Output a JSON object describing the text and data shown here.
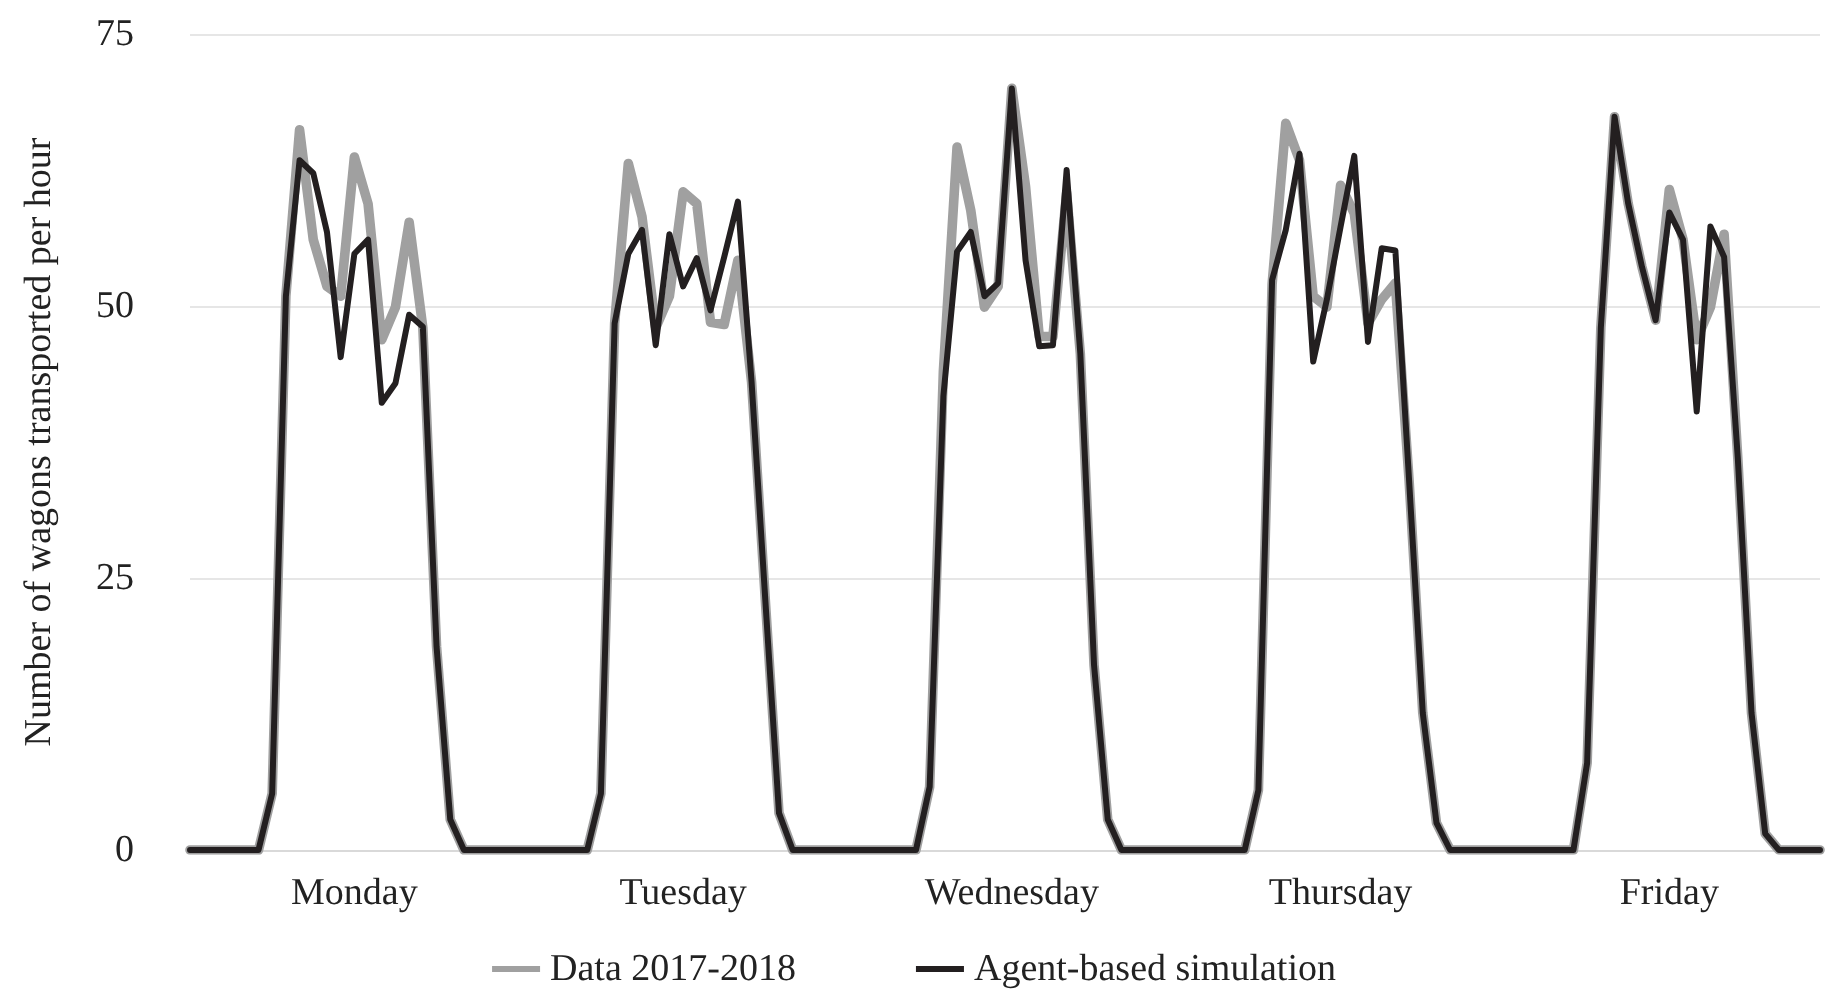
{
  "chart_data": {
    "type": "line",
    "ylabel": "Number of wagons transported per hour",
    "categories": [
      null,
      null,
      null,
      null,
      null,
      null,
      null,
      null,
      null,
      null,
      null,
      null,
      "Monday",
      null,
      null,
      null,
      null,
      null,
      null,
      null,
      null,
      null,
      null,
      null,
      null,
      null,
      null,
      null,
      null,
      null,
      null,
      null,
      null,
      null,
      null,
      null,
      "Tuesday",
      null,
      null,
      null,
      null,
      null,
      null,
      null,
      null,
      null,
      null,
      null,
      null,
      null,
      null,
      null,
      null,
      null,
      null,
      null,
      null,
      null,
      null,
      null,
      "Wednesday",
      null,
      null,
      null,
      null,
      null,
      null,
      null,
      null,
      null,
      null,
      null,
      null,
      null,
      null,
      null,
      null,
      null,
      null,
      null,
      null,
      null,
      null,
      null,
      "Thursday",
      null,
      null,
      null,
      null,
      null,
      null,
      null,
      null,
      null,
      null,
      null,
      null,
      null,
      null,
      null,
      null,
      null,
      null,
      null,
      null,
      null,
      null,
      null,
      "Friday",
      null,
      null,
      null,
      null,
      null,
      null,
      null,
      null,
      null,
      null,
      null
    ],
    "series": [
      {
        "name": "Data 2017-2018",
        "color": "#a0a0a0",
        "values": [
          0,
          0,
          0,
          0,
          0,
          0,
          5.2,
          50.9,
          66.2,
          56.1,
          51.8,
          50.9,
          63.7,
          59.4,
          46.9,
          49.9,
          57.7,
          48,
          18.7,
          2.8,
          0,
          0,
          0,
          0,
          0,
          0,
          0,
          0,
          0,
          0,
          5.2,
          48.4,
          63.1,
          58.2,
          48,
          50.9,
          60.5,
          59.4,
          48.5,
          48.3,
          54.2,
          43,
          23,
          3.4,
          0,
          0,
          0,
          0,
          0,
          0,
          0,
          0,
          0,
          0,
          5.8,
          44,
          64.6,
          58.8,
          49.9,
          51.8,
          70,
          61,
          47.2,
          47.2,
          60.4,
          45.6,
          17,
          2.8,
          0,
          0,
          0,
          0,
          0,
          0,
          0,
          0,
          0,
          0,
          5.5,
          52,
          66.8,
          63.4,
          50.9,
          49.9,
          61.1,
          58.5,
          48.4,
          50.6,
          52.1,
          34,
          12.6,
          2.5,
          0,
          0,
          0,
          0,
          0,
          0,
          0,
          0,
          0,
          0,
          8,
          48,
          67.4,
          59.4,
          53.6,
          48.7,
          60.7,
          56.1,
          46.9,
          49.9,
          56.6,
          36,
          12.6,
          1.5,
          0,
          0,
          0,
          0
        ]
      },
      {
        "name": "Agent-based simulation",
        "color": "#231f20",
        "values": [
          0,
          0,
          0,
          0,
          0,
          0,
          5.2,
          50.9,
          63.4,
          62.2,
          56.8,
          45.3,
          54.8,
          56.1,
          41.1,
          42.9,
          49.2,
          48.1,
          18.7,
          2.8,
          0,
          0,
          0,
          0,
          0,
          0,
          0,
          0,
          0,
          0,
          5.2,
          48.4,
          54.8,
          57,
          46.4,
          56.6,
          51.8,
          54.4,
          49.6,
          54.5,
          59.6,
          43,
          23,
          3.4,
          0,
          0,
          0,
          0,
          0,
          0,
          0,
          0,
          0,
          0,
          5.8,
          41.7,
          55,
          56.8,
          50.9,
          52.1,
          70,
          54.2,
          46.3,
          46.4,
          62.5,
          45.6,
          17,
          2.8,
          0,
          0,
          0,
          0,
          0,
          0,
          0,
          0,
          0,
          0,
          5.5,
          52.4,
          57,
          64,
          44.9,
          50.6,
          57.3,
          63.8,
          46.7,
          55.3,
          55.1,
          34,
          12.6,
          2.5,
          0,
          0,
          0,
          0,
          0,
          0,
          0,
          0,
          0,
          0,
          8,
          48,
          67.4,
          59.4,
          53.6,
          48.7,
          58.6,
          56.1,
          40.3,
          57.3,
          54.5,
          36,
          12.6,
          1.5,
          0,
          0,
          0,
          0
        ]
      }
    ],
    "ylim": [
      0,
      75
    ],
    "yticks": [
      0,
      25,
      50,
      75
    ],
    "grid": "y",
    "legend": "bottom",
    "marker": "none",
    "line_style": "solid"
  }
}
